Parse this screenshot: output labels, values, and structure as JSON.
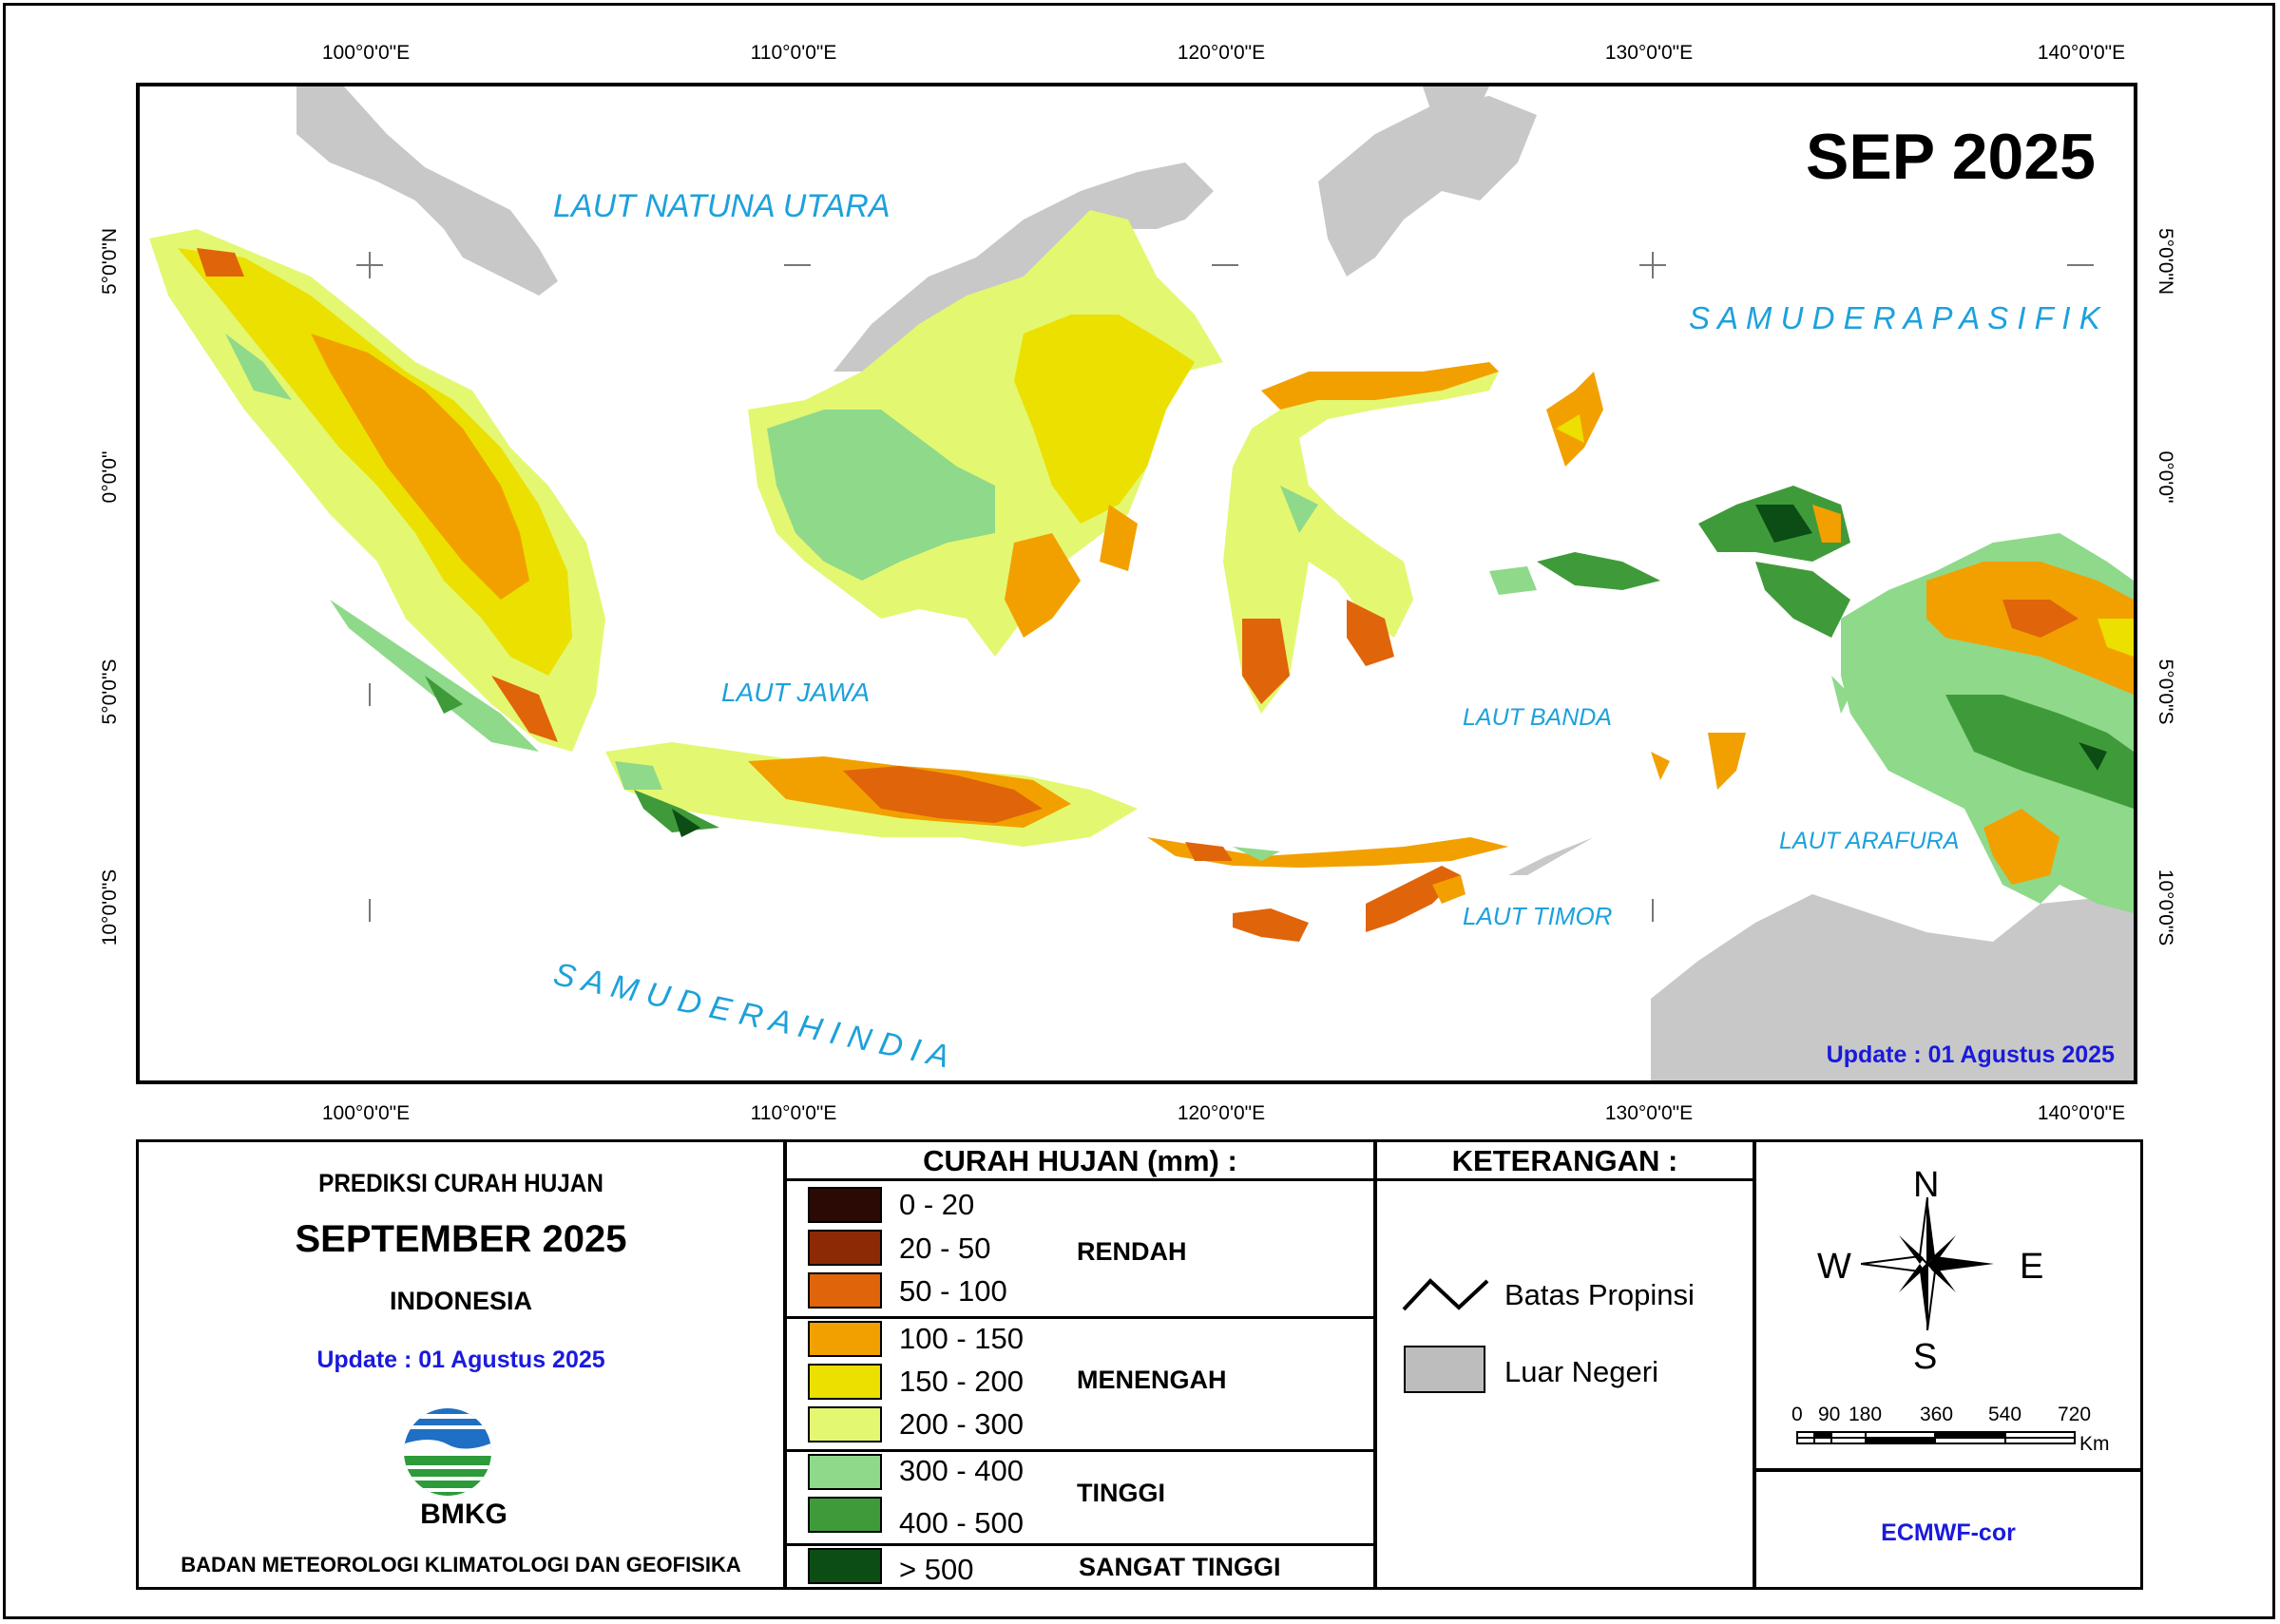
{
  "map": {
    "title": "SEP 2025",
    "update": "Update : 01 Agustus  2025",
    "lon_labels": [
      "100°0'0\"E",
      "110°0'0\"E",
      "120°0'0\"E",
      "130°0'0\"E",
      "140°0'0\"E"
    ],
    "lat_labels": [
      "5°0'0\"N",
      "0°0'0\"",
      "5°0'0\"S",
      "10°0'0\"S"
    ],
    "seas": {
      "natuna": "LAUT NATUNA UTARA",
      "pasifik": "S A M U D E R A   P A S I F I K",
      "jawa": "LAUT JAWA",
      "banda": "LAUT BANDA",
      "arafura": "LAUT ARAFURA",
      "timor": "LAUT TIMOR",
      "hindia": "S A M U D E R A   H I N D I A"
    }
  },
  "info": {
    "heading": "PREDIKSI CURAH HUJAN",
    "month": "SEPTEMBER 2025",
    "region": "INDONESIA",
    "update": "Update : 01 Agustus  2025",
    "logo_text": "BMKG",
    "agency": "BADAN METEOROLOGI KLIMATOLOGI DAN GEOFISIKA"
  },
  "legend": {
    "title": "CURAH HUJAN (mm) :",
    "classes": [
      {
        "range": "0 - 20",
        "color": "#2b0a05"
      },
      {
        "range": "20 - 50",
        "color": "#8c2a06"
      },
      {
        "range": "50 - 100",
        "color": "#e0640a"
      },
      {
        "range": "100 - 150",
        "color": "#f2a000"
      },
      {
        "range": "150 - 200",
        "color": "#ebe000"
      },
      {
        "range": "200 - 300",
        "color": "#e4f771"
      },
      {
        "range": "300 - 400",
        "color": "#8fd98a"
      },
      {
        "range": "400 - 500",
        "color": "#3f9b3a"
      },
      {
        "range": "> 500",
        "color": "#0b4d14"
      }
    ],
    "categories": [
      "RENDAH",
      "MENENGAH",
      "TINGGI",
      "SANGAT TINGGI"
    ]
  },
  "keterangan": {
    "title": "KETERANGAN :",
    "items": [
      {
        "label": "Batas Propinsi",
        "icon": "boundary-line-icon"
      },
      {
        "label": "Luar Negeri",
        "icon": "gray-box-icon",
        "color": "#bdbdbd"
      }
    ]
  },
  "compass": {
    "n": "N",
    "s": "S",
    "e": "E",
    "w": "W"
  },
  "scale": {
    "labels": [
      "0",
      "90",
      "180",
      "360",
      "540",
      "720"
    ],
    "unit": "Km"
  },
  "source": "ECMWF-cor"
}
